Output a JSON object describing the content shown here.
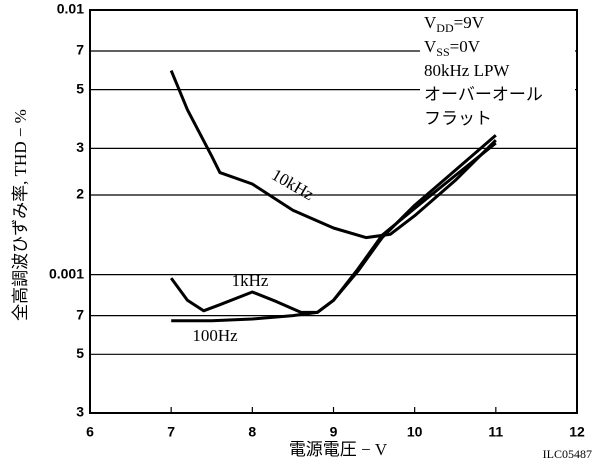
{
  "chart_data": {
    "type": "line",
    "y_label": "全高調波ひずみ率, THD − %",
    "x_label": "電源電圧 − V",
    "code": "ILC05487",
    "annotations": [
      {
        "text": "V",
        "sub": "DD",
        "tail": "=9V"
      },
      {
        "text": "V",
        "sub": "SS",
        "tail": "=0V"
      },
      {
        "text": "80kHz LPW"
      },
      {
        "text": "オーバーオール"
      },
      {
        "text": "フラット"
      }
    ],
    "xlim": [
      6,
      12
    ],
    "xticks": [
      6,
      7,
      8,
      9,
      10,
      11,
      12
    ],
    "ylim": [
      0.0003,
      0.01
    ],
    "log_y": true,
    "grid": true,
    "yticks": [
      {
        "value": 0.0003,
        "label": "3"
      },
      {
        "value": 0.0005,
        "label": "5"
      },
      {
        "value": 0.0007,
        "label": "7"
      },
      0.001,
      {
        "value": 0.002,
        "label": "2"
      },
      {
        "value": 0.003,
        "label": "3"
      },
      {
        "value": 0.005,
        "label": "5"
      },
      {
        "value": 0.007,
        "label": "7"
      },
      0.01
    ],
    "series": [
      {
        "name": "10kHz",
        "color": "#000000",
        "x": [
          7,
          7.2,
          7.5,
          7.6,
          8,
          8.5,
          9,
          9.4,
          9.7,
          10,
          10.5,
          11
        ],
        "values": [
          0.0059,
          0.0042,
          0.0028,
          0.00243,
          0.0022,
          0.00175,
          0.0015,
          0.00138,
          0.00142,
          0.00167,
          0.00227,
          0.00322
        ]
      },
      {
        "name": "1kHz",
        "color": "#000000",
        "x": [
          7,
          7.2,
          7.4,
          7.6,
          8,
          8.3,
          8.6,
          8.8,
          9,
          9.3,
          9.6,
          10,
          10.5,
          11
        ],
        "values": [
          0.00097,
          0.0008,
          0.00073,
          0.00077,
          0.00086,
          0.00079,
          0.00072,
          0.00072,
          0.0008,
          0.00105,
          0.00141,
          0.00178,
          0.00237,
          0.00314
        ]
      },
      {
        "name": "100Hz",
        "color": "#000000",
        "x": [
          7,
          7.5,
          8,
          8.5,
          8.8,
          9,
          9.3,
          9.6,
          10,
          10.5,
          11
        ],
        "values": [
          0.00067,
          0.00067,
          0.00068,
          0.0007,
          0.00072,
          0.0008,
          0.00103,
          0.00138,
          0.00183,
          0.00248,
          0.00336
        ]
      }
    ]
  }
}
